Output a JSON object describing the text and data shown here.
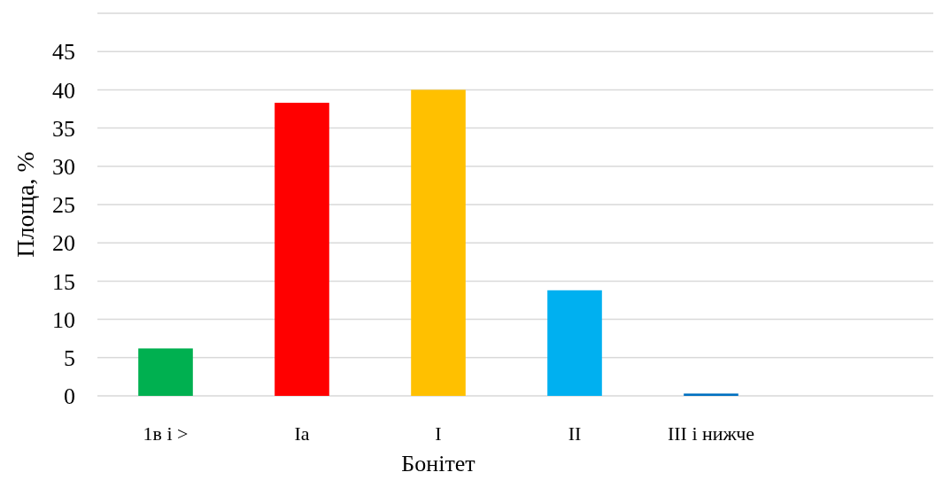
{
  "chart_data": {
    "type": "bar",
    "xlabel": "Бонітет",
    "ylabel": "Площа, %",
    "categories": [
      "1в і >",
      "Іа",
      "І",
      "ІІ",
      "ІІІ і нижче"
    ],
    "values": [
      6.2,
      38.3,
      40,
      13.8,
      0.3
    ],
    "colors": [
      "#00b050",
      "#ff0000",
      "#ffc000",
      "#00b0f0",
      "#0070c0"
    ],
    "ylim": [
      0,
      50
    ],
    "yticks": [
      0,
      5,
      10,
      15,
      20,
      25,
      30,
      35,
      40,
      45,
      {
        "value": 50,
        "label": null
      }
    ],
    "grid": true
  }
}
